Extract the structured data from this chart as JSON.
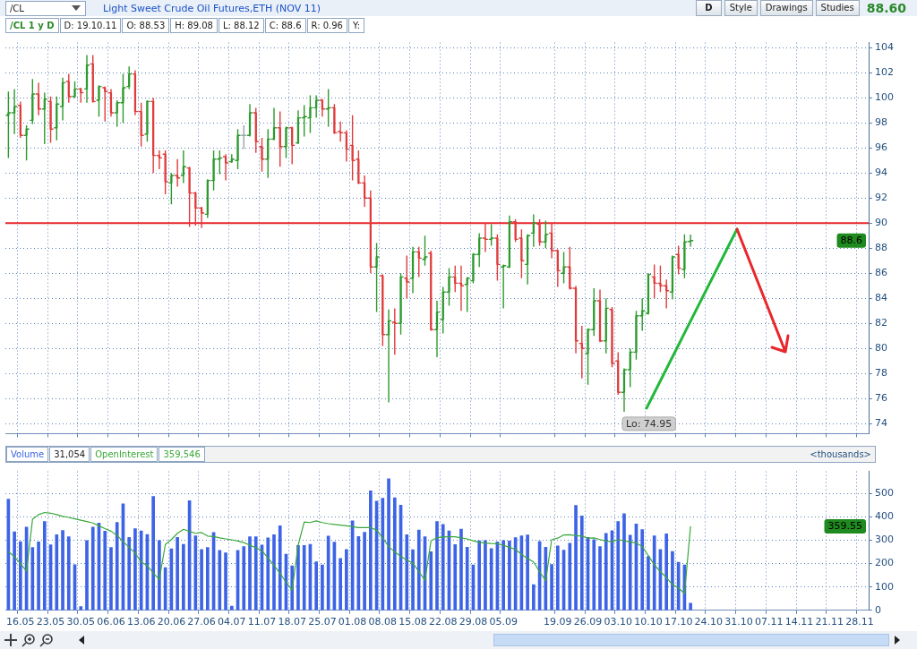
{
  "chart_data": [
    {
      "type": "candlestick",
      "title": "Light Sweet Crude Oil Futures,ETH (NOV 11)",
      "categories": [
        null,
        null,
        "16.05",
        null,
        null,
        null,
        null,
        "23.05",
        null,
        null,
        null,
        null,
        "30.05",
        null,
        null,
        null,
        null,
        "06.06",
        null,
        null,
        null,
        null,
        "13.06",
        null,
        null,
        null,
        null,
        "20.06",
        null,
        null,
        null,
        null,
        "27.06",
        null,
        null,
        null,
        null,
        "04.07",
        null,
        null,
        null,
        null,
        "11.07",
        null,
        null,
        null,
        null,
        "18.07",
        null,
        null,
        null,
        null,
        "25.07",
        null,
        null,
        null,
        null,
        "01.08",
        null,
        null,
        null,
        null,
        "08.08",
        null,
        null,
        null,
        null,
        "15.08",
        null,
        null,
        null,
        null,
        "22.08",
        null,
        null,
        null,
        null,
        "29.08",
        null,
        null,
        null,
        null,
        "05.09",
        null,
        null,
        null,
        null,
        null,
        null,
        null,
        null,
        "19.09",
        null,
        null,
        null,
        null,
        "26.09",
        null,
        null,
        null,
        null,
        "03.10",
        null,
        null,
        null,
        null,
        "10.10",
        null,
        null,
        null,
        null,
        "17.10",
        null,
        null,
        null,
        null,
        "24.10",
        null,
        null,
        null,
        null,
        "31.10",
        null,
        null,
        null,
        null,
        "07.11",
        null,
        null,
        null,
        null,
        "14.11",
        null,
        null,
        null,
        null,
        "21.11",
        null,
        null,
        null,
        null,
        "28.11",
        null
      ],
      "ohlc": [
        [
          98.6,
          100.5,
          95.2,
          98.8
        ],
        [
          98.8,
          100.7,
          97.1,
          99.3
        ],
        [
          99.4,
          99.7,
          96.8,
          97.0
        ],
        [
          97.0,
          97.8,
          95.0,
          97.5
        ],
        [
          98.2,
          101.5,
          97.9,
          100.3
        ],
        [
          100.3,
          101.2,
          98.6,
          99.1
        ],
        [
          99.1,
          100.4,
          96.3,
          99.9
        ],
        [
          99.7,
          100.1,
          96.4,
          97.5
        ],
        [
          97.6,
          100.1,
          96.6,
          99.5
        ],
        [
          99.3,
          101.6,
          98.2,
          101.2
        ],
        [
          101.3,
          101.9,
          99.6,
          100.1
        ],
        [
          100.1,
          101.3,
          100.0,
          100.7
        ],
        [
          100.7,
          100.8,
          99.6,
          100.4
        ],
        [
          100.7,
          103.4,
          99.6,
          102.6
        ],
        [
          102.7,
          103.4,
          99.6,
          99.7
        ],
        [
          99.8,
          101.0,
          98.5,
          100.9
        ],
        [
          100.8,
          100.9,
          98.1,
          100.5
        ],
        [
          100.4,
          100.7,
          98.5,
          98.8
        ],
        [
          98.8,
          99.8,
          97.7,
          99.6
        ],
        [
          99.6,
          101.9,
          98.0,
          100.8
        ],
        [
          100.9,
          102.5,
          100.7,
          101.9
        ],
        [
          101.9,
          102.2,
          98.6,
          98.9
        ],
        [
          98.9,
          99.6,
          96.1,
          97.0
        ],
        [
          97.1,
          99.8,
          96.5,
          99.7
        ],
        [
          99.7,
          100.0,
          94.0,
          95.4
        ],
        [
          95.4,
          95.8,
          94.3,
          95.2
        ],
        [
          95.5,
          95.8,
          92.3,
          93.3
        ],
        [
          93.2,
          94.0,
          91.5,
          93.8
        ],
        [
          93.8,
          95.1,
          92.9,
          93.6
        ],
        [
          93.8,
          95.8,
          93.2,
          94.5
        ],
        [
          94.4,
          94.5,
          89.7,
          92.4
        ],
        [
          92.4,
          92.5,
          89.8,
          91.2
        ],
        [
          91.2,
          91.3,
          89.6,
          90.8
        ],
        [
          90.7,
          93.5,
          90.4,
          93.4
        ],
        [
          93.4,
          95.8,
          92.6,
          95.1
        ],
        [
          95.1,
          95.8,
          93.9,
          95.2
        ],
        [
          95.3,
          95.5,
          93.4,
          94.8
        ],
        [
          94.9,
          95.5,
          94.8,
          95.1
        ],
        [
          95.0,
          97.5,
          94.3,
          97.0
        ],
        [
          97.0,
          97.8,
          95.9,
          97.0
        ],
        [
          97.0,
          99.5,
          96.9,
          98.8
        ],
        [
          98.8,
          99.2,
          95.6,
          96.5
        ],
        [
          96.1,
          96.8,
          94.1,
          95.1
        ],
        [
          95.1,
          97.5,
          93.6,
          96.7
        ],
        [
          96.7,
          99.2,
          96.6,
          97.6
        ],
        [
          97.6,
          98.9,
          94.5,
          96.1
        ],
        [
          96.1,
          97.7,
          95.2,
          97.6
        ],
        [
          97.6,
          97.7,
          94.7,
          96.2
        ],
        [
          96.4,
          99.0,
          96.3,
          98.4
        ],
        [
          98.4,
          99.4,
          96.9,
          98.5
        ],
        [
          98.4,
          100.2,
          97.2,
          99.2
        ],
        [
          99.2,
          100.2,
          98.4,
          99.8
        ],
        [
          99.8,
          99.9,
          98.5,
          99.1
        ],
        [
          99.1,
          100.7,
          97.7,
          99.2
        ],
        [
          99.2,
          99.5,
          97.1,
          97.2
        ],
        [
          97.3,
          98.1,
          96.5,
          97.2
        ],
        [
          97.2,
          97.4,
          94.9,
          95.9
        ],
        [
          96.2,
          98.6,
          93.4,
          95.0
        ],
        [
          95.1,
          95.8,
          93.1,
          93.2
        ],
        [
          93.2,
          93.8,
          91.3,
          92.0
        ],
        [
          92.0,
          92.6,
          86.0,
          86.5
        ],
        [
          86.5,
          88.4,
          82.9,
          87.3
        ],
        [
          85.8,
          85.9,
          80.2,
          81.1
        ],
        [
          81.1,
          83.1,
          75.7,
          82.2
        ],
        [
          82.1,
          83.2,
          79.5,
          82.0
        ],
        [
          82.0,
          86.0,
          81.1,
          85.7
        ],
        [
          85.6,
          87.4,
          84.0,
          85.3
        ],
        [
          85.6,
          88.1,
          84.4,
          87.7
        ],
        [
          87.7,
          88.1,
          85.7,
          87.2
        ],
        [
          87.1,
          89.0,
          86.6,
          87.3
        ],
        [
          87.6,
          87.8,
          81.4,
          81.5
        ],
        [
          81.5,
          83.8,
          79.3,
          82.9
        ],
        [
          82.3,
          84.9,
          81.2,
          84.5
        ],
        [
          84.5,
          86.4,
          83.4,
          85.7
        ],
        [
          85.7,
          86.6,
          84.5,
          85.2
        ],
        [
          85.2,
          86.6,
          83.0,
          85.0
        ],
        [
          85.1,
          85.7,
          82.9,
          85.6
        ],
        [
          85.4,
          87.6,
          85.2,
          87.5
        ],
        [
          87.5,
          89.2,
          86.5,
          88.8
        ],
        [
          88.8,
          90.0,
          87.7,
          88.7
        ],
        [
          88.7,
          89.9,
          88.2,
          88.8
        ],
        [
          88.8,
          89.1,
          85.4,
          86.7
        ],
        [
          86.5,
          86.7,
          83.2,
          86.6
        ],
        [
          86.5,
          90.6,
          86.4,
          90.1
        ],
        [
          90.1,
          90.3,
          88.5,
          88.7
        ],
        [
          88.8,
          89.5,
          85.6,
          87.0
        ],
        [
          86.7,
          89.1,
          85.1,
          89.0
        ],
        [
          89.2,
          90.7,
          88.1,
          90.0
        ],
        [
          89.9,
          90.3,
          88.2,
          88.5
        ],
        [
          88.5,
          90.2,
          88.0,
          89.1
        ],
        [
          89.2,
          90.0,
          87.2,
          87.8
        ],
        [
          87.8,
          87.9,
          84.9,
          86.2
        ],
        [
          86.0,
          87.7,
          85.2,
          86.5
        ],
        [
          86.5,
          88.1,
          84.7,
          84.8
        ],
        [
          84.8,
          85.0,
          79.6,
          80.6
        ],
        [
          80.4,
          81.8,
          77.6,
          80.0
        ],
        [
          79.6,
          81.6,
          77.1,
          81.5
        ],
        [
          81.5,
          84.8,
          81.0,
          83.8
        ],
        [
          83.8,
          84.7,
          80.5,
          80.6
        ],
        [
          80.6,
          84.0,
          79.6,
          83.2
        ],
        [
          83.1,
          83.3,
          78.5,
          78.8
        ],
        [
          79.0,
          79.7,
          76.3,
          76.5
        ],
        [
          76.5,
          78.4,
          74.95,
          78.3
        ],
        [
          78.3,
          80.0,
          76.9,
          79.7
        ],
        [
          79.7,
          83.0,
          79.1,
          82.6
        ],
        [
          82.6,
          84.0,
          81.4,
          83.0
        ],
        [
          82.8,
          86.0,
          82.7,
          85.9
        ],
        [
          85.7,
          86.7,
          84.0,
          85.2
        ],
        [
          85.2,
          86.6,
          84.5,
          85.0
        ],
        [
          85.0,
          85.5,
          83.2,
          84.6
        ],
        [
          84.5,
          87.4,
          83.9,
          87.3
        ],
        [
          87.5,
          88.2,
          85.9,
          86.4
        ],
        [
          86.3,
          89.1,
          85.6,
          88.5
        ],
        [
          88.53,
          89.08,
          88.12,
          88.6
        ],
        null,
        null,
        null,
        null,
        null,
        null,
        null,
        null,
        null,
        null,
        null,
        null,
        null,
        null,
        null,
        null,
        null,
        null,
        null,
        null,
        null,
        null,
        null,
        null,
        null,
        null,
        null,
        null,
        null
      ],
      "colors": [
        "#2e9a2e",
        "#2e9a2e",
        "#e03c3c",
        "#2e9a2e",
        "#2e9a2e",
        "#e03c3c",
        "#2e9a2e",
        "#e03c3c",
        "#2e9a2e",
        "#2e9a2e",
        "#e03c3c",
        "#2e9a2e",
        "#e03c3c",
        "#2e9a2e",
        "#e03c3c",
        "#2e9a2e",
        "#e03c3c",
        "#e03c3c",
        "#2e9a2e",
        "#2e9a2e",
        "#2e9a2e",
        "#e03c3c",
        "#e03c3c",
        "#2e9a2e",
        "#e03c3c",
        "#e03c3c",
        "#e03c3c",
        "#2e9a2e",
        "#e03c3c",
        "#2e9a2e",
        "#e03c3c",
        "#e03c3c",
        "#e03c3c",
        "#2e9a2e",
        "#2e9a2e",
        "#2e9a2e",
        "#e03c3c",
        "#2e9a2e",
        "#2e9a2e",
        "#9aa4ae",
        "#2e9a2e",
        "#e03c3c",
        "#e03c3c",
        "#2e9a2e",
        "#2e9a2e",
        "#e03c3c",
        "#2e9a2e",
        "#e03c3c",
        "#2e9a2e",
        "#2e9a2e",
        "#2e9a2e",
        "#2e9a2e",
        "#e03c3c",
        "#2e9a2e",
        "#e03c3c",
        "#e03c3c",
        "#e03c3c",
        "#e03c3c",
        "#e03c3c",
        "#e03c3c",
        "#e03c3c",
        "#2e9a2e",
        "#e03c3c",
        "#2e9a2e",
        "#e03c3c",
        "#2e9a2e",
        "#e03c3c",
        "#2e9a2e",
        "#e03c3c",
        "#2e9a2e",
        "#e03c3c",
        "#2e9a2e",
        "#2e9a2e",
        "#2e9a2e",
        "#e03c3c",
        "#e03c3c",
        "#2e9a2e",
        "#2e9a2e",
        "#2e9a2e",
        "#e03c3c",
        "#2e9a2e",
        "#e03c3c",
        "#2e9a2e",
        "#2e9a2e",
        "#e03c3c",
        "#e03c3c",
        "#2e9a2e",
        "#2e9a2e",
        "#e03c3c",
        "#2e9a2e",
        "#e03c3c",
        "#e03c3c",
        "#2e9a2e",
        "#e03c3c",
        "#e03c3c",
        "#e03c3c",
        "#2e9a2e",
        "#2e9a2e",
        "#e03c3c",
        "#2e9a2e",
        "#e03c3c",
        "#e03c3c",
        "#2e9a2e",
        "#2e9a2e",
        "#2e9a2e",
        "#2e9a2e",
        "#2e9a2e",
        "#e03c3c",
        "#e03c3c",
        "#e03c3c",
        "#2e9a2e",
        "#e03c3c",
        "#2e9a2e",
        "#2e9a2e",
        null,
        null,
        null,
        null,
        null,
        null,
        null,
        null,
        null,
        null,
        null,
        null,
        null,
        null,
        null,
        null,
        null,
        null,
        null,
        null,
        null,
        null,
        null,
        null,
        null,
        null,
        null,
        null,
        null
      ],
      "ylim": [
        73.2,
        104.4
      ],
      "yticks": [
        74,
        76,
        78,
        80,
        82,
        84,
        86,
        88,
        90,
        92,
        94,
        96,
        98,
        100,
        102,
        104
      ],
      "grid": true,
      "tick_labels": "y",
      "ref_lines": [
        {
          "axis": "y",
          "value": 90,
          "color": "#e8262b"
        }
      ],
      "annotations": [
        "/CL",
        "D",
        "Style",
        "Drawings",
        "Studies",
        "88.60",
        "/CL 1 y D",
        "D: 19.10.11",
        "O: 88.53",
        "H: 89.08",
        "L: 88.12",
        "C: 88.6",
        "R: 0.96",
        "Y:",
        "Lo: 74.95",
        "88.6"
      ]
    },
    {
      "type": "bar",
      "ylabel": "<thousands>",
      "categories": [
        null,
        null,
        "16.05",
        null,
        null,
        null,
        null,
        "23.05",
        null,
        null,
        null,
        null,
        "30.05",
        null,
        null,
        null,
        null,
        "06.06",
        null,
        null,
        null,
        null,
        "13.06",
        null,
        null,
        null,
        null,
        "20.06",
        null,
        null,
        null,
        null,
        "27.06",
        null,
        null,
        null,
        null,
        "04.07",
        null,
        null,
        null,
        null,
        "11.07",
        null,
        null,
        null,
        null,
        "18.07",
        null,
        null,
        null,
        null,
        "25.07",
        null,
        null,
        null,
        null,
        "01.08",
        null,
        null,
        null,
        null,
        "08.08",
        null,
        null,
        null,
        null,
        "15.08",
        null,
        null,
        null,
        null,
        "22.08",
        null,
        null,
        null,
        null,
        "29.08",
        null,
        null,
        null,
        null,
        "05.09",
        null,
        null,
        null,
        null,
        null,
        null,
        null,
        null,
        "19.09",
        null,
        null,
        null,
        null,
        "26.09",
        null,
        null,
        null,
        null,
        "03.10",
        null,
        null,
        null,
        null,
        "10.10",
        null,
        null,
        null,
        null,
        "17.10",
        null,
        null,
        null,
        null,
        "24.10",
        null,
        null,
        null,
        null,
        "31.10",
        null,
        null,
        null,
        null,
        "07.11",
        null,
        null,
        null,
        null,
        "14.11",
        null,
        null,
        null,
        null,
        "21.11",
        null,
        null,
        null,
        null,
        "28.11",
        null
      ],
      "series": [
        {
          "name": "Volume",
          "color": "#3d63e6",
          "values": [
            476,
            336,
            294,
            356,
            269,
            293,
            380,
            281,
            324,
            342,
            315,
            195,
            16,
            299,
            356,
            374,
            339,
            269,
            377,
            456,
            312,
            350,
            340,
            325,
            488,
            299,
            183,
            263,
            312,
            283,
            470,
            319,
            261,
            269,
            333,
            257,
            246,
            18,
            257,
            273,
            315,
            315,
            280,
            310,
            324,
            362,
            240,
            191,
            278,
            278,
            283,
            208,
            194,
            318,
            292,
            222,
            261,
            383,
            316,
            334,
            512,
            468,
            480,
            563,
            482,
            450,
            324,
            260,
            344,
            315,
            251,
            380,
            368,
            340,
            282,
            348,
            270,
            194,
            298,
            299,
            264,
            293,
            299,
            297,
            311,
            319,
            323,
            110,
            295,
            270,
            196,
            276,
            258,
            287,
            449,
            404,
            312,
            303,
            273,
            330,
            341,
            380,
            414,
            322,
            370,
            346,
            231,
            319,
            261,
            328,
            252,
            206,
            194,
            31,
            null,
            null,
            null,
            null,
            null,
            null,
            null,
            null,
            null,
            null,
            null,
            null,
            null,
            null,
            null,
            null,
            null,
            null,
            null,
            null,
            null,
            null,
            null,
            null,
            null,
            null,
            null,
            null,
            null
          ]
        },
        {
          "name": "OpenInterest",
          "type": "line",
          "color": "#3aa83a",
          "values": [
            251,
            230,
            200,
            167,
            390,
            410,
            419,
            416,
            410,
            402,
            398,
            392,
            386,
            380,
            374,
            362,
            350,
            339,
            321,
            295,
            270,
            245,
            207,
            191,
            160,
            132,
            282,
            303,
            330,
            347,
            338,
            330,
            333,
            318,
            316,
            310,
            306,
            302,
            297,
            290,
            279,
            268,
            255,
            225,
            192,
            159,
            120,
            87,
            279,
            378,
            376,
            383,
            376,
            371,
            368,
            365,
            362,
            358,
            354,
            354,
            354,
            344,
            310,
            273,
            250,
            231,
            215,
            203,
            165,
            129,
            297,
            311,
            314,
            315,
            315,
            310,
            306,
            298,
            291,
            288,
            286,
            285,
            278,
            270,
            261,
            240,
            222,
            207,
            165,
            127,
            303,
            309,
            323,
            324,
            320,
            318,
            309,
            310,
            303,
            297,
            294,
            303,
            298,
            293,
            288,
            273,
            235,
            195,
            165,
            141,
            110,
            96,
            72,
            360,
            null,
            null,
            null,
            null,
            null,
            null,
            null,
            null,
            null,
            null,
            null,
            null,
            null,
            null,
            null,
            null,
            null,
            null,
            null,
            null,
            null,
            null,
            null,
            null,
            null,
            null,
            null,
            null,
            null
          ]
        }
      ],
      "ylim": [
        0,
        595
      ],
      "yticks": [
        0,
        100,
        200,
        300,
        400,
        500
      ],
      "grid": true,
      "legend": "top left",
      "annotations": [
        "31,054",
        "359,546",
        "359.55"
      ]
    }
  ]
}
